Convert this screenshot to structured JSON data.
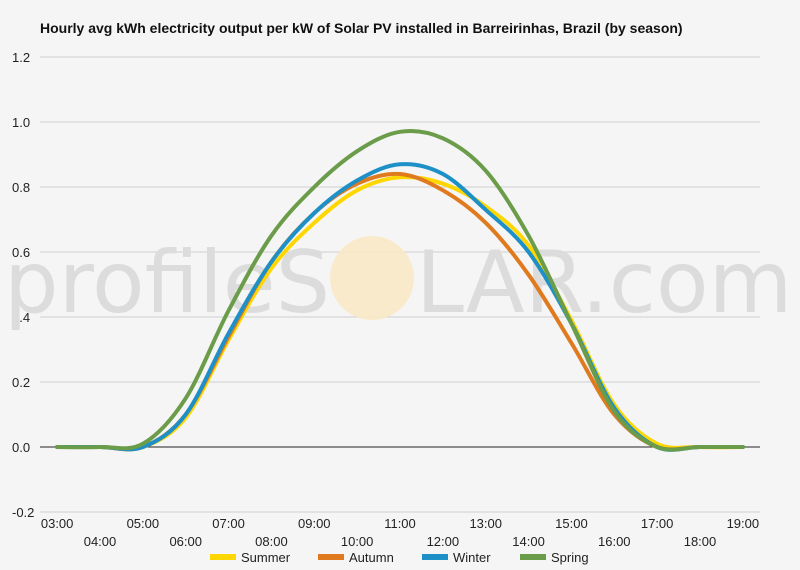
{
  "chart_data": {
    "type": "line",
    "title": "Hourly avg kWh electricity output per kW of Solar PV installed in Barreirinhas, Brazil (by season)",
    "xlabel": "",
    "ylabel": "",
    "ylim": [
      -0.2,
      1.2
    ],
    "yticks": [
      "1.2",
      "1.0",
      "0.8",
      "0.6",
      "0.4",
      "0.2",
      "0.0",
      "-0.2"
    ],
    "ytick_values": [
      1.2,
      1.0,
      0.8,
      0.6,
      0.4,
      0.2,
      0.0,
      -0.2
    ],
    "xticks_upper": [
      "03:00",
      "05:00",
      "07:00",
      "09:00",
      "11:00",
      "13:00",
      "15:00",
      "17:00",
      "19:00"
    ],
    "xticks_lower": [
      "04:00",
      "06:00",
      "08:00",
      "10:00",
      "12:00",
      "14:00",
      "16:00",
      "18:00"
    ],
    "x_hours_upper": [
      3,
      5,
      7,
      9,
      11,
      13,
      15,
      17,
      19
    ],
    "x_hours_lower": [
      4,
      6,
      8,
      10,
      12,
      14,
      16,
      18
    ],
    "x": [
      3,
      4,
      5,
      6,
      7,
      8,
      9,
      10,
      11,
      12,
      13,
      14,
      15,
      16,
      17,
      18,
      19
    ],
    "grid": true,
    "legend_position": "bottom",
    "series": [
      {
        "name": "Summer",
        "color": "#FFD700",
        "values": [
          0.0,
          0.0,
          0.0,
          0.09,
          0.33,
          0.55,
          0.69,
          0.79,
          0.83,
          0.81,
          0.74,
          0.62,
          0.39,
          0.13,
          0.01,
          0.0,
          0.0
        ]
      },
      {
        "name": "Autumn",
        "color": "#E07A1F",
        "values": [
          0.0,
          0.0,
          0.0,
          0.1,
          0.34,
          0.57,
          0.72,
          0.81,
          0.84,
          0.79,
          0.69,
          0.53,
          0.32,
          0.1,
          0.0,
          0.0,
          0.0
        ]
      },
      {
        "name": "Winter",
        "color": "#1E90C8",
        "values": [
          0.0,
          0.0,
          0.0,
          0.1,
          0.35,
          0.57,
          0.72,
          0.82,
          0.87,
          0.84,
          0.73,
          0.6,
          0.38,
          0.12,
          0.0,
          0.0,
          0.0
        ]
      },
      {
        "name": "Spring",
        "color": "#6A9C4A",
        "values": [
          0.0,
          0.0,
          0.01,
          0.15,
          0.42,
          0.65,
          0.8,
          0.91,
          0.97,
          0.95,
          0.85,
          0.65,
          0.38,
          0.11,
          0.0,
          0.0,
          0.0
        ]
      }
    ]
  },
  "watermark": {
    "left": "profileS",
    "right": "LAR.com"
  }
}
